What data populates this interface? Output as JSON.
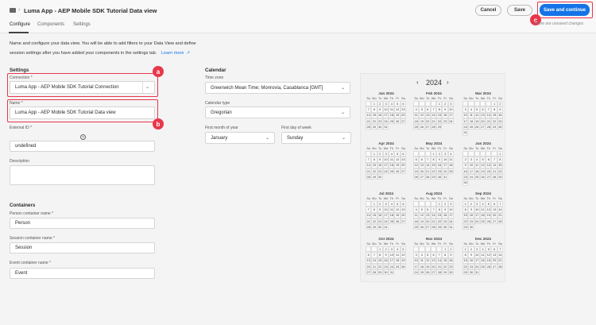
{
  "header": {
    "breadcrumb_icon": "folder-icon",
    "title": "Luma App - AEP Mobile SDK Tutorial Data view",
    "cancel": "Cancel",
    "save": "Save",
    "save_continue": "Save and continue",
    "unsaved": "There are unsaved changes"
  },
  "tabs": [
    {
      "label": "Configure",
      "active": true
    },
    {
      "label": "Components"
    },
    {
      "label": "Settings"
    }
  ],
  "description": {
    "line1": "Name and configure your data view. You will be able to add filters to your Data View and define",
    "line2": "session settings after you have added your components in the settings tab.",
    "learn_more": "Learn more"
  },
  "settings": {
    "heading": "Settings",
    "connection_label": "Connection",
    "connection_value": "Luma App - AEP Mobile SDK Tutorial Connection",
    "name_label": "Name",
    "name_value": "Luma App - AEP Mobile SDK Tutorial Data view",
    "external_id_label": "External ID",
    "external_id_value": "undefined",
    "description_label": "Description",
    "description_value": "",
    "required": "*"
  },
  "containers": {
    "heading": "Containers",
    "person_label": "Person container name",
    "person_value": "Person",
    "session_label": "Session container name",
    "session_value": "Session",
    "event_label": "Event container name",
    "event_value": "Event"
  },
  "calendar": {
    "heading": "Calendar",
    "timezone_label": "Time zone",
    "timezone_value": "Greenwich Mean Time; Monrovia, Casablanca [GMT]",
    "type_label": "Calendar type",
    "type_value": "Gregorian",
    "first_month_label": "First month of year",
    "first_month_value": "January",
    "first_day_label": "First day of week",
    "first_day_value": "Sunday",
    "year": "2024",
    "prev": "‹",
    "next": "›",
    "weekdays": [
      "Su",
      "Mo",
      "Tu",
      "We",
      "Th",
      "Fr",
      "Sa"
    ],
    "months": [
      {
        "name": "Jan 2024",
        "start": 1,
        "days": 31
      },
      {
        "name": "Feb 2024",
        "start": 4,
        "days": 29
      },
      {
        "name": "Mar 2024",
        "start": 5,
        "days": 31
      },
      {
        "name": "Apr 2024",
        "start": 1,
        "days": 30
      },
      {
        "name": "May 2024",
        "start": 3,
        "days": 31
      },
      {
        "name": "Jun 2024",
        "start": 6,
        "days": 30
      },
      {
        "name": "Jul 2024",
        "start": 1,
        "days": 31
      },
      {
        "name": "Aug 2024",
        "start": 4,
        "days": 31
      },
      {
        "name": "Sep 2024",
        "start": 0,
        "days": 30
      },
      {
        "name": "Oct 2024",
        "start": 2,
        "days": 31
      },
      {
        "name": "Nov 2024",
        "start": 5,
        "days": 30
      },
      {
        "name": "Dec 2024",
        "start": 0,
        "days": 31
      }
    ]
  },
  "annotations": {
    "a": "a",
    "b": "b",
    "c": "c",
    "color": "#e8374a"
  },
  "accent": "#1473e6"
}
